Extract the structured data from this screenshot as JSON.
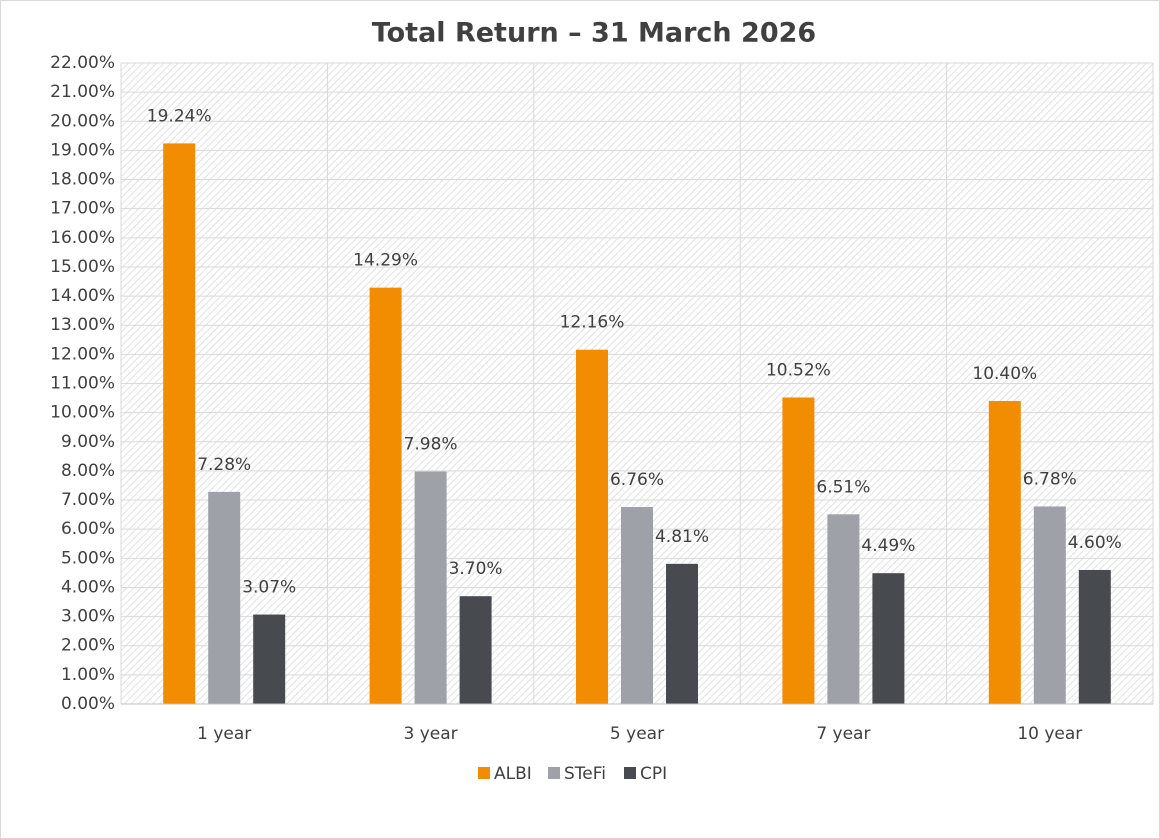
{
  "chart_data": {
    "type": "bar",
    "title": "Total Return – 31 March 2026",
    "categories": [
      "1 year",
      "3 year",
      "5 year",
      "7 year",
      "10 year"
    ],
    "series": [
      {
        "name": "ALBI",
        "color": "#f28c00",
        "values": [
          19.24,
          14.29,
          12.16,
          10.52,
          10.4
        ],
        "value_labels": [
          "19.24%",
          "14.29%",
          "12.16%",
          "10.52%",
          "10.40%"
        ]
      },
      {
        "name": "STeFi",
        "color": "#9ea1a8",
        "values": [
          7.28,
          7.98,
          6.76,
          6.51,
          6.78
        ],
        "value_labels": [
          "7.28%",
          "7.98%",
          "6.76%",
          "6.51%",
          "6.78%"
        ]
      },
      {
        "name": "CPI",
        "color": "#474b50",
        "values": [
          3.07,
          3.7,
          4.81,
          4.49,
          4.6
        ],
        "value_labels": [
          "3.07%",
          "3.70%",
          "4.81%",
          "4.49%",
          "4.60%"
        ]
      }
    ],
    "ylim": [
      0,
      22
    ],
    "yticks": [
      {
        "value": 0,
        "label": "0.00%"
      },
      {
        "value": 1,
        "label": "1.00%"
      },
      {
        "value": 2,
        "label": "2.00%"
      },
      {
        "value": 3,
        "label": "3.00%"
      },
      {
        "value": 4,
        "label": "4.00%"
      },
      {
        "value": 5,
        "label": "5.00%"
      },
      {
        "value": 6,
        "label": "6.00%"
      },
      {
        "value": 7,
        "label": "7.00%"
      },
      {
        "value": 8,
        "label": "8.00%"
      },
      {
        "value": 9,
        "label": "9.00%"
      },
      {
        "value": 10,
        "label": "10.00%"
      },
      {
        "value": 11,
        "label": "11.00%"
      },
      {
        "value": 12,
        "label": "12.00%"
      },
      {
        "value": 13,
        "label": "13.00%"
      },
      {
        "value": 14,
        "label": "14.00%"
      },
      {
        "value": 15,
        "label": "15.00%"
      },
      {
        "value": 16,
        "label": "16.00%"
      },
      {
        "value": 17,
        "label": "17.00%"
      },
      {
        "value": 18,
        "label": "18.00%"
      },
      {
        "value": 19,
        "label": "19.00%"
      },
      {
        "value": 20,
        "label": "20.00%"
      },
      {
        "value": 21,
        "label": "21.00%"
      },
      {
        "value": 22,
        "label": "22.00%"
      }
    ],
    "grid": true,
    "legend": "bottom"
  }
}
